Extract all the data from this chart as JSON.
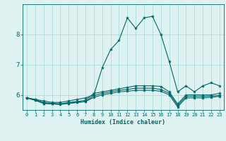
{
  "title": "",
  "xlabel": "Humidex (Indice chaleur)",
  "x_values": [
    0,
    1,
    2,
    3,
    4,
    5,
    6,
    7,
    8,
    9,
    10,
    11,
    12,
    13,
    14,
    15,
    16,
    17,
    18,
    19,
    20,
    21,
    22,
    23
  ],
  "line1": [
    5.9,
    5.85,
    5.8,
    5.75,
    5.75,
    5.8,
    5.85,
    5.9,
    6.0,
    6.9,
    7.5,
    7.8,
    8.55,
    8.2,
    8.55,
    8.6,
    8.0,
    7.1,
    6.1,
    6.3,
    6.1,
    6.3,
    6.4,
    6.3
  ],
  "line2": [
    5.9,
    5.85,
    5.75,
    5.72,
    5.7,
    5.75,
    5.78,
    5.82,
    6.05,
    6.1,
    6.15,
    6.2,
    6.25,
    6.3,
    6.3,
    6.3,
    6.28,
    6.1,
    5.7,
    6.0,
    6.0,
    6.0,
    6.0,
    6.05
  ],
  "line3": [
    5.9,
    5.82,
    5.72,
    5.7,
    5.68,
    5.72,
    5.75,
    5.78,
    5.98,
    6.05,
    6.1,
    6.15,
    6.18,
    6.22,
    6.22,
    6.22,
    6.18,
    6.05,
    5.65,
    5.95,
    5.95,
    5.95,
    5.96,
    5.98
  ],
  "line4": [
    5.9,
    5.82,
    5.72,
    5.7,
    5.7,
    5.72,
    5.75,
    5.78,
    5.92,
    6.0,
    6.05,
    6.1,
    6.12,
    6.15,
    6.15,
    6.15,
    6.12,
    6.0,
    5.6,
    5.9,
    5.9,
    5.9,
    5.92,
    5.95
  ],
  "bg_color": "#dff2f2",
  "grid_color": "#aadddd",
  "line_color": "#006666",
  "ylim": [
    5.5,
    9.0
  ],
  "yticks": [
    6,
    7,
    8
  ],
  "marker": "*",
  "marker_size": 3,
  "line_width": 0.8
}
